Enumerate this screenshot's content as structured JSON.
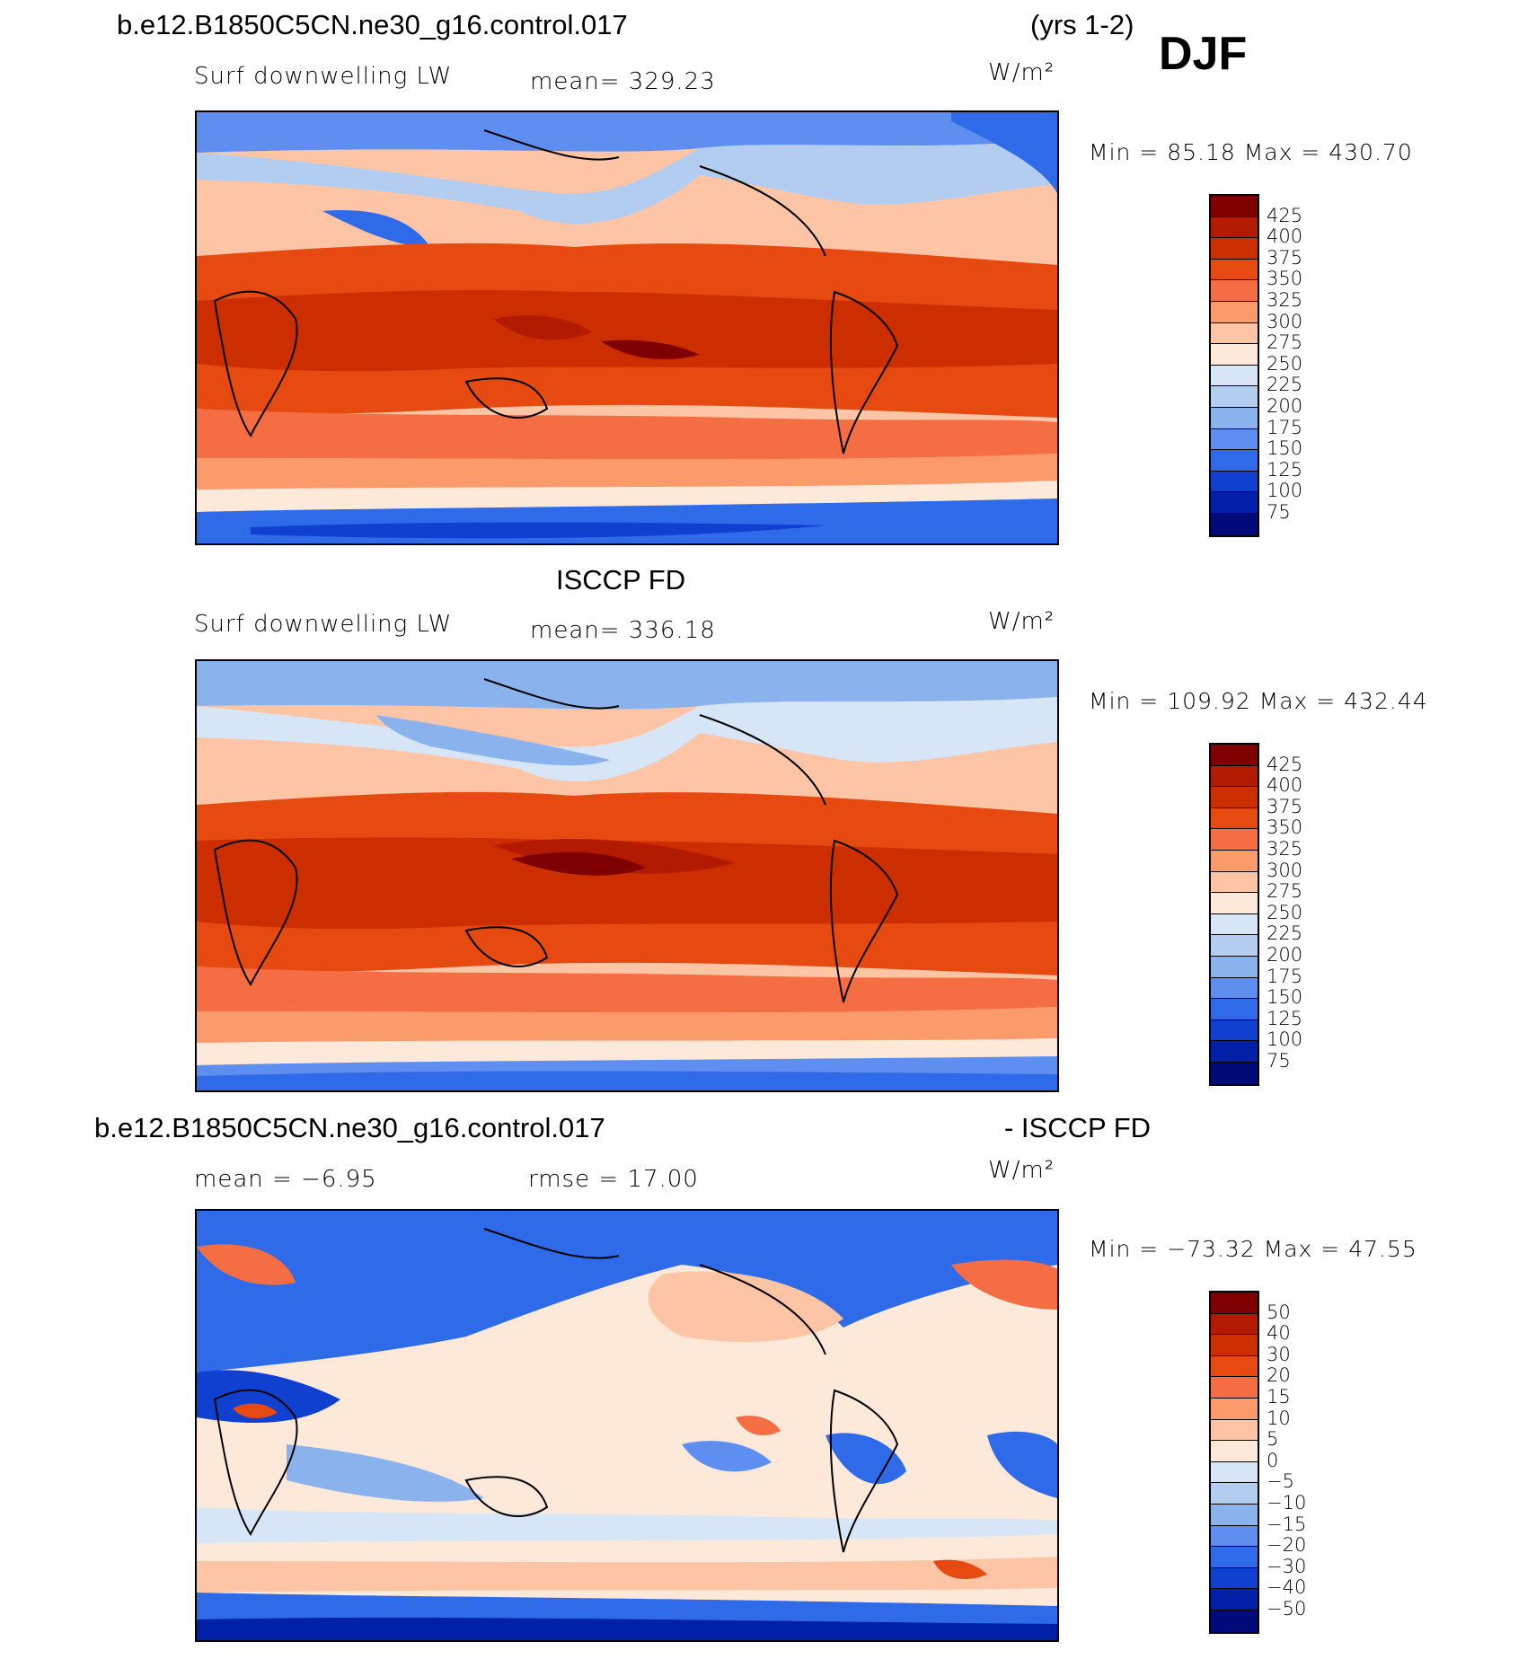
{
  "header": {
    "case_name": "b.e12.B1850C5CN.ne30_g16.control.017",
    "years": "(yrs 1-2)",
    "season": "DJF"
  },
  "panels": [
    {
      "id": "model",
      "title": "",
      "variable": "Surf downwelling LW",
      "stat_text": "mean=  329.23",
      "units": "W/m²",
      "min_max": "Min =   85.18  Max  =  430.70",
      "levels": [
        "425",
        "400",
        "375",
        "350",
        "325",
        "300",
        "275",
        "250",
        "225",
        "200",
        "175",
        "150",
        "125",
        "100",
        "75"
      ],
      "colors": [
        "#7f0000",
        "#b31b00",
        "#cc2e00",
        "#e64a10",
        "#f46d43",
        "#fb9a6b",
        "#fdc5a5",
        "#fde9d9",
        "#d6e6f6",
        "#b3cdf0",
        "#8ab3ee",
        "#5e8ff0",
        "#2f6be8",
        "#1040d0",
        "#0020a8",
        "#000a78"
      ]
    },
    {
      "id": "obs",
      "title": "ISCCP FD",
      "variable": "Surf downwelling LW",
      "stat_text": "mean=  336.18",
      "units": "W/m²",
      "min_max": "Min  =  109.92  Max  =  432.44",
      "levels": [
        "425",
        "400",
        "375",
        "350",
        "325",
        "300",
        "275",
        "250",
        "225",
        "200",
        "175",
        "150",
        "125",
        "100",
        "75"
      ],
      "colors": [
        "#7f0000",
        "#b31b00",
        "#cc2e00",
        "#e64a10",
        "#f46d43",
        "#fb9a6b",
        "#fdc5a5",
        "#fde9d9",
        "#d6e6f6",
        "#b3cdf0",
        "#8ab3ee",
        "#5e8ff0",
        "#2f6be8",
        "#1040d0",
        "#0020a8",
        "#000a78"
      ]
    },
    {
      "id": "diff",
      "title_left": "b.e12.B1850C5CN.ne30_g16.control.017",
      "title_right": "- ISCCP FD",
      "mean_text": "mean  =   −6.95",
      "rmse_text": "rmse  =    17.00",
      "units": "W/m²",
      "min_max": "Min  =  −73.32  Max  =    47.55",
      "levels": [
        "50",
        "40",
        "30",
        "20",
        "15",
        "10",
        "5",
        "0",
        "−5",
        "−10",
        "−15",
        "−20",
        "−30",
        "−40",
        "−50"
      ],
      "colors": [
        "#7f0000",
        "#b31b00",
        "#cc2e00",
        "#e64a10",
        "#f46d43",
        "#fb9a6b",
        "#fdc5a5",
        "#fde9d9",
        "#d6e6f6",
        "#b3cdf0",
        "#8ab3ee",
        "#5e8ff0",
        "#2f6be8",
        "#1040d0",
        "#0020a8",
        "#000a78"
      ]
    }
  ]
}
